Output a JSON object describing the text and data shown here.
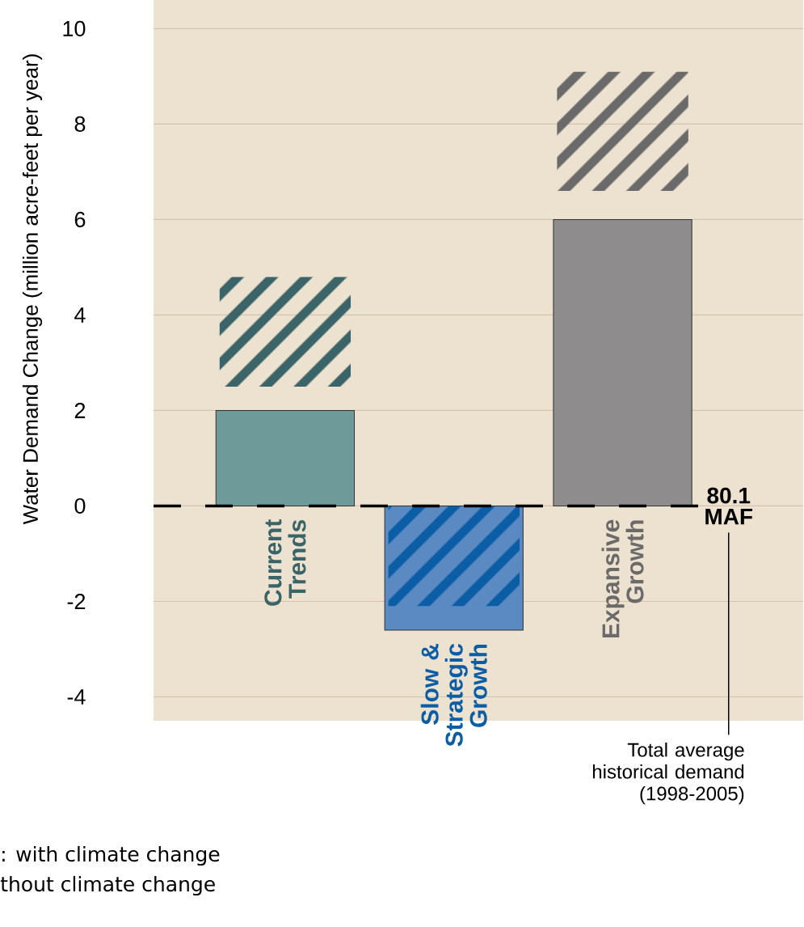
{
  "chart_data": {
    "type": "bar",
    "ylabel": "Water Demand Change (million acre-feet per year)",
    "categories": [
      "Current Trends",
      "Slow & Strategic Growth",
      "Expansive Growth"
    ],
    "series": [
      {
        "colors": [
          "#6e9a9a",
          "#5b8ac2",
          "#8e8c8c"
        ],
        "values": [
          2,
          -2.6,
          6
        ]
      },
      {
        "colors": [
          "#3a6468",
          "#0b5ea6",
          "#6b6a6a"
        ],
        "base": [
          2.5,
          0,
          6.6
        ],
        "values": [
          2.3,
          -2.1,
          2.5
        ]
      }
    ],
    "ylim": [
      -4.5,
      10.6
    ],
    "yticks": [
      -4,
      -2,
      0,
      2,
      4,
      6,
      8,
      10
    ],
    "grid": "y",
    "ref_lines": [
      {
        "axis": "y",
        "value": 0,
        "label": "80.1 MAF",
        "line_style": "dashed",
        "color": "#000000"
      }
    ],
    "annotations": [
      "Total average historical demand (1998-2005)",
      ": with climate change",
      "thout climate change"
    ]
  }
}
